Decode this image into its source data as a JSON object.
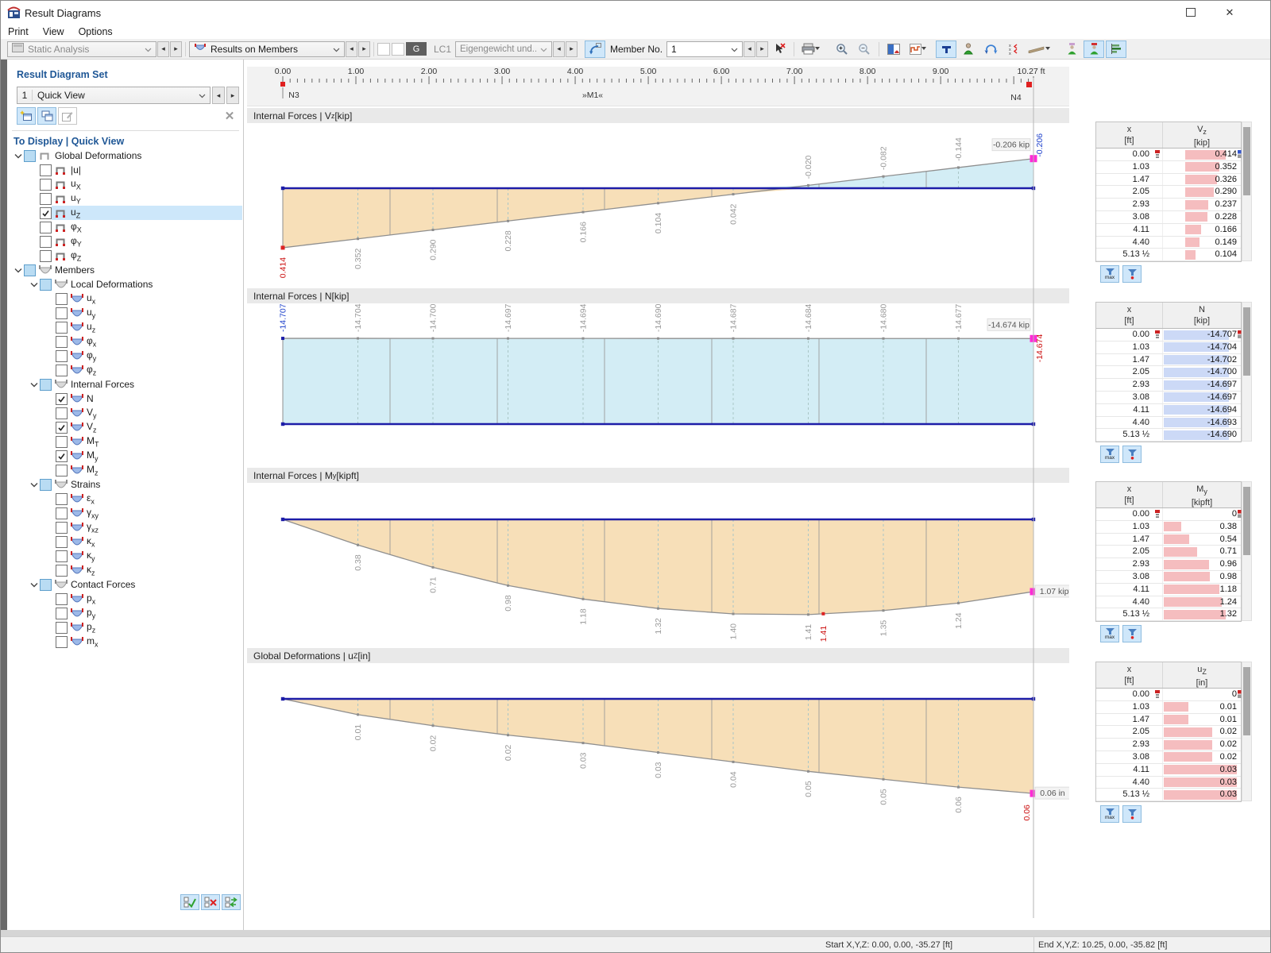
{
  "window": {
    "title": "Result Diagrams"
  },
  "menu": {
    "items": [
      "Print",
      "View",
      "Options"
    ]
  },
  "toolbar": {
    "analysis": "Static Analysis",
    "results": "Results on Members",
    "g": "G",
    "lc": "LC1",
    "loadcase": "Eigengewicht und...",
    "member_label": "Member No.",
    "member_value": "1"
  },
  "xctl": {
    "label": "x :",
    "value": "10.27",
    "unit": "[ft]"
  },
  "ruler": {
    "majors": [
      "0.00",
      "1.00",
      "2.00",
      "3.00",
      "4.00",
      "5.00",
      "6.00",
      "7.00",
      "8.00",
      "9.00"
    ],
    "end": "10.27 ft",
    "node_start": "N3",
    "member": "»M1«",
    "node_end": "N4",
    "length_ft": 10.27
  },
  "sidebar": {
    "set_heading": "Result Diagram Set",
    "set_number": "1",
    "set_name": "Quick View",
    "display_heading": "To Display | Quick View",
    "tree": [
      {
        "label": "Global Deformations",
        "state": "p",
        "icon": "fg",
        "children": [
          {
            "label": "|u|",
            "state": "u",
            "icon": "f"
          },
          {
            "label": "u",
            "sub": "X",
            "state": "u",
            "icon": "f"
          },
          {
            "label": "u",
            "sub": "Y",
            "state": "u",
            "icon": "f"
          },
          {
            "label": "u",
            "sub": "Z",
            "state": "c",
            "icon": "f",
            "selected": true
          },
          {
            "label": "φ",
            "sub": "X",
            "state": "u",
            "icon": "f"
          },
          {
            "label": "φ",
            "sub": "Y",
            "state": "u",
            "icon": "f"
          },
          {
            "label": "φ",
            "sub": "Z",
            "state": "u",
            "icon": "f"
          }
        ]
      },
      {
        "label": "Members",
        "state": "p",
        "icon": "g",
        "children": [
          {
            "label": "Local Deformations",
            "state": "p",
            "icon": "g",
            "children": [
              {
                "label": "u",
                "sub": "x",
                "state": "u",
                "icon": "c"
              },
              {
                "label": "u",
                "sub": "y",
                "state": "u",
                "icon": "c"
              },
              {
                "label": "u",
                "sub": "z",
                "state": "u",
                "icon": "c"
              },
              {
                "label": "φ",
                "sub": "x",
                "state": "u",
                "icon": "c"
              },
              {
                "label": "φ",
                "sub": "y",
                "state": "u",
                "icon": "c"
              },
              {
                "label": "φ",
                "sub": "z",
                "state": "u",
                "icon": "c"
              }
            ]
          },
          {
            "label": "Internal Forces",
            "state": "p",
            "icon": "g",
            "children": [
              {
                "label": "N",
                "state": "c",
                "icon": "c"
              },
              {
                "label": "V",
                "sub": "y",
                "state": "u",
                "icon": "c"
              },
              {
                "label": "V",
                "sub": "z",
                "state": "c",
                "icon": "c"
              },
              {
                "label": "M",
                "sub": "T",
                "state": "u",
                "icon": "c"
              },
              {
                "label": "M",
                "sub": "y",
                "state": "c",
                "icon": "c"
              },
              {
                "label": "M",
                "sub": "z",
                "state": "u",
                "icon": "c"
              }
            ]
          },
          {
            "label": "Strains",
            "state": "p",
            "icon": "g",
            "children": [
              {
                "label": "ε",
                "sub": "x",
                "state": "u",
                "icon": "c"
              },
              {
                "label": "γ",
                "sub": "xy",
                "state": "u",
                "icon": "c"
              },
              {
                "label": "γ",
                "sub": "xz",
                "state": "u",
                "icon": "c"
              },
              {
                "label": "κ",
                "sub": "x",
                "state": "u",
                "icon": "c"
              },
              {
                "label": "κ",
                "sub": "y",
                "state": "u",
                "icon": "c"
              },
              {
                "label": "κ",
                "sub": "z",
                "state": "u",
                "icon": "c"
              }
            ]
          },
          {
            "label": "Contact Forces",
            "state": "p",
            "icon": "g",
            "children": [
              {
                "label": "p",
                "sub": "x",
                "state": "u",
                "icon": "c"
              },
              {
                "label": "p",
                "sub": "y",
                "state": "u",
                "icon": "c"
              },
              {
                "label": "p",
                "sub": "z",
                "state": "u",
                "icon": "c"
              },
              {
                "label": "m",
                "sub": "x",
                "state": "u",
                "icon": "c"
              }
            ]
          }
        ]
      }
    ]
  },
  "diagrams": [
    {
      "title": {
        "pre": "Internal Forces | V",
        "sub": "z",
        "post": " [kip]"
      },
      "curve": [
        0.414,
        0.352,
        0.29,
        0.228,
        0.166,
        0.104,
        0.042,
        -0.02,
        -0.082,
        -0.144,
        -0.206
      ],
      "labels": [
        "0.414",
        "0.352",
        "0.290",
        "0.228",
        "0.166",
        "0.104",
        "0.042",
        "-0.020",
        "-0.082",
        "-0.144"
      ],
      "start_color": "#cc1111",
      "end_label": "-0.206",
      "end_label_color": "#2244cc",
      "tooltip": "-0.206 kip"
    },
    {
      "title": {
        "pre": "Internal Forces | N",
        "sub": "",
        "post": " [kip]"
      },
      "curve": [
        -14.707,
        -14.704,
        -14.7,
        -14.697,
        -14.694,
        -14.69,
        -14.687,
        -14.684,
        -14.68,
        -14.677,
        -14.674
      ],
      "labels": [
        "-14.707",
        "-14.704",
        "-14.700",
        "-14.697",
        "-14.694",
        "-14.690",
        "-14.687",
        "-14.684",
        "-14.680",
        "-14.677"
      ],
      "start_color": "#2244cc",
      "end_label": "-14.674",
      "end_label_color": "#cc1111",
      "tooltip": "-14.674 kip"
    },
    {
      "title": {
        "pre": "Internal Forces | M",
        "sub": "y",
        "post": " [kipft]"
      },
      "curve": [
        0,
        0.38,
        0.71,
        0.98,
        1.18,
        1.32,
        1.4,
        1.41,
        1.35,
        1.24,
        1.07
      ],
      "labels": [
        "",
        "0.38",
        "0.71",
        "0.98",
        "1.18",
        "1.32",
        "1.40",
        "1.41",
        "1.35",
        "1.24"
      ],
      "max": {
        "t": 0.72,
        "label": "1.41"
      },
      "tooltip": "1.07 kipft"
    },
    {
      "title": {
        "pre": "Global Deformations | u",
        "sub": "Z",
        "post": " [in]"
      },
      "curve": [
        0,
        0.01,
        0.017,
        0.023,
        0.028,
        0.034,
        0.04,
        0.046,
        0.051,
        0.056,
        0.06
      ],
      "labels": [
        "",
        "0.01",
        "0.02",
        "0.02",
        "0.03",
        "0.03",
        "0.04",
        "0.05",
        "0.05",
        "0.06"
      ],
      "end_label": "0.06",
      "end_label_color": "#cc1111",
      "tooltip": "0.06 in"
    }
  ],
  "tables": [
    {
      "col_x": "x",
      "col_x_unit": "[ft]",
      "col_v": "V",
      "col_v_sub": "z",
      "col_v_unit": "[kip]",
      "rows": [
        [
          "0.00",
          "0.414"
        ],
        [
          "1.03",
          "0.352"
        ],
        [
          "1.47",
          "0.326"
        ],
        [
          "2.05",
          "0.290"
        ],
        [
          "2.93",
          "0.237"
        ],
        [
          "3.08",
          "0.228"
        ],
        [
          "4.11",
          "0.166"
        ],
        [
          "4.40",
          "0.149"
        ],
        [
          "5.13 ½",
          "0.104"
        ]
      ]
    },
    {
      "col_x": "x",
      "col_x_unit": "[ft]",
      "col_v": "N",
      "col_v_sub": "",
      "col_v_unit": "[kip]",
      "rows": [
        [
          "0.00",
          "-14.707"
        ],
        [
          "1.03",
          "-14.704"
        ],
        [
          "1.47",
          "-14.702"
        ],
        [
          "2.05",
          "-14.700"
        ],
        [
          "2.93",
          "-14.697"
        ],
        [
          "3.08",
          "-14.697"
        ],
        [
          "4.11",
          "-14.694"
        ],
        [
          "4.40",
          "-14.693"
        ],
        [
          "5.13 ½",
          "-14.690"
        ]
      ]
    },
    {
      "col_x": "x",
      "col_x_unit": "[ft]",
      "col_v": "M",
      "col_v_sub": "y",
      "col_v_unit": "[kipft]",
      "rows": [
        [
          "0.00",
          "0"
        ],
        [
          "1.03",
          "0.38"
        ],
        [
          "1.47",
          "0.54"
        ],
        [
          "2.05",
          "0.71"
        ],
        [
          "2.93",
          "0.96"
        ],
        [
          "3.08",
          "0.98"
        ],
        [
          "4.11",
          "1.18"
        ],
        [
          "4.40",
          "1.24"
        ],
        [
          "5.13 ½",
          "1.32"
        ]
      ]
    },
    {
      "col_x": "x",
      "col_x_unit": "[ft]",
      "col_v": "u",
      "col_v_sub": "Z",
      "col_v_unit": "[in]",
      "rows": [
        [
          "0.00",
          "0"
        ],
        [
          "1.03",
          "0.01"
        ],
        [
          "1.47",
          "0.01"
        ],
        [
          "2.05",
          "0.02"
        ],
        [
          "2.93",
          "0.02"
        ],
        [
          "3.08",
          "0.02"
        ],
        [
          "4.11",
          "0.03"
        ],
        [
          "4.40",
          "0.03"
        ],
        [
          "5.13 ½",
          "0.03"
        ]
      ]
    }
  ],
  "table_buttons": {
    "max": "max"
  },
  "status": {
    "start": "Start X,Y,Z: 0.00, 0.00, -35.27 [ft]",
    "end": "End X,Y,Z: 10.25, 0.00, -35.82 [ft]"
  },
  "colors": {
    "fill_pos": "#f7dfb8",
    "fill_neg": "#d3edf5",
    "baseline": "#1d1da8",
    "curve": "#8f8f8f",
    "bar_pink": "#f5bdbf",
    "bar_blue": "#ccd9f6",
    "marker_magenta": "#ff2bd6",
    "heading_blue": "#1f5796"
  }
}
